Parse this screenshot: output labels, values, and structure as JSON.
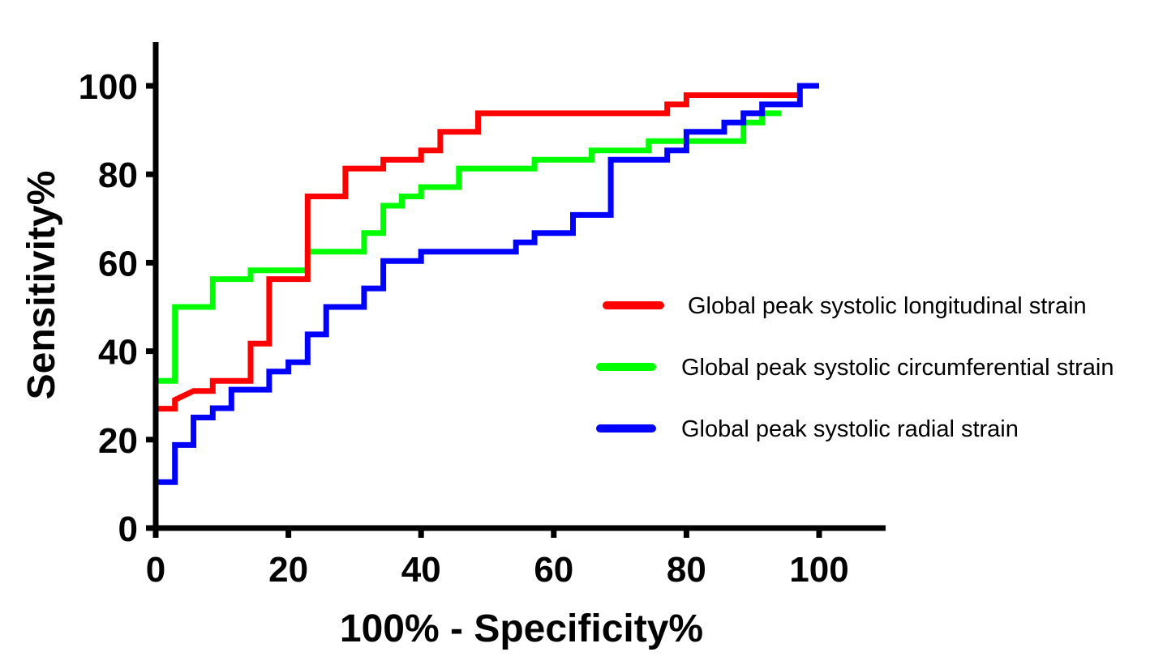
{
  "chart_data": {
    "type": "line",
    "title": "",
    "xlabel": "100% - Specificity%",
    "ylabel": "Sensitivity%",
    "xlim": [
      0,
      110
    ],
    "ylim": [
      0,
      110
    ],
    "xticks": [
      "0",
      "20",
      "40",
      "60",
      "80",
      "100"
    ],
    "yticks": [
      "0",
      "20",
      "40",
      "60",
      "80",
      "100"
    ],
    "legend_position": "right",
    "series": [
      {
        "name": " Global peak systolic longitudinal strain",
        "color": "#ff0000",
        "points": [
          [
            0,
            27
          ],
          [
            2.9,
            27
          ],
          [
            2.9,
            29
          ],
          [
            5.7,
            31
          ],
          [
            8.6,
            31
          ],
          [
            8.6,
            33.3
          ],
          [
            14.3,
            33.3
          ],
          [
            14.3,
            41.7
          ],
          [
            17.1,
            41.7
          ],
          [
            17.1,
            56.3
          ],
          [
            22.9,
            56.3
          ],
          [
            22.9,
            75
          ],
          [
            28.6,
            75
          ],
          [
            28.6,
            81.3
          ],
          [
            34.3,
            81.3
          ],
          [
            34.3,
            83.3
          ],
          [
            40,
            83.3
          ],
          [
            40,
            85.4
          ],
          [
            42.9,
            85.4
          ],
          [
            42.9,
            89.6
          ],
          [
            48.6,
            89.6
          ],
          [
            48.6,
            93.8
          ],
          [
            77.1,
            93.8
          ],
          [
            77.1,
            95.8
          ],
          [
            80,
            95.8
          ],
          [
            80,
            97.9
          ],
          [
            97.1,
            97.9
          ]
        ]
      },
      {
        "name": "Global peak systolic circumferential strain",
        "color": "#00ff00",
        "points": [
          [
            0,
            12
          ],
          [
            0,
            33.3
          ],
          [
            2.9,
            33.3
          ],
          [
            2.9,
            50
          ],
          [
            8.6,
            50
          ],
          [
            8.6,
            56.3
          ],
          [
            14.3,
            56.3
          ],
          [
            14.3,
            58.3
          ],
          [
            22.9,
            58.3
          ],
          [
            22.9,
            62.5
          ],
          [
            31.4,
            62.5
          ],
          [
            31.4,
            66.7
          ],
          [
            34.3,
            66.7
          ],
          [
            34.3,
            72.9
          ],
          [
            37.1,
            72.9
          ],
          [
            37.1,
            75
          ],
          [
            40,
            75
          ],
          [
            40,
            77.1
          ],
          [
            45.7,
            77.1
          ],
          [
            45.7,
            81.3
          ],
          [
            57.1,
            81.3
          ],
          [
            57.1,
            83.3
          ],
          [
            65.7,
            83.3
          ],
          [
            65.7,
            85.4
          ],
          [
            74.3,
            85.4
          ],
          [
            74.3,
            87.5
          ],
          [
            88.6,
            87.5
          ],
          [
            88.6,
            91.7
          ],
          [
            91.4,
            91.7
          ],
          [
            91.4,
            93.8
          ],
          [
            94.3,
            93.8
          ]
        ]
      },
      {
        "name": "Global peak systolic radial strain",
        "color": "#0000ff",
        "points": [
          [
            0,
            0
          ],
          [
            0,
            10.4
          ],
          [
            2.9,
            10.4
          ],
          [
            2.9,
            18.8
          ],
          [
            5.7,
            18.8
          ],
          [
            5.7,
            25
          ],
          [
            8.6,
            25
          ],
          [
            8.6,
            27.1
          ],
          [
            11.4,
            27.1
          ],
          [
            11.4,
            31.3
          ],
          [
            17.1,
            31.3
          ],
          [
            17.1,
            35.4
          ],
          [
            20,
            35.4
          ],
          [
            20,
            37.5
          ],
          [
            22.9,
            37.5
          ],
          [
            22.9,
            43.8
          ],
          [
            25.7,
            43.8
          ],
          [
            25.7,
            50
          ],
          [
            31.4,
            50
          ],
          [
            31.4,
            54.2
          ],
          [
            34.3,
            54.2
          ],
          [
            34.3,
            60.4
          ],
          [
            40,
            60.4
          ],
          [
            40,
            62.5
          ],
          [
            54.3,
            62.5
          ],
          [
            54.3,
            64.6
          ],
          [
            57.1,
            64.6
          ],
          [
            57.1,
            66.7
          ],
          [
            62.9,
            66.7
          ],
          [
            62.9,
            70.8
          ],
          [
            68.6,
            70.8
          ],
          [
            68.6,
            83.3
          ],
          [
            77.1,
            83.3
          ],
          [
            77.1,
            85.4
          ],
          [
            80,
            85.4
          ],
          [
            80,
            89.6
          ],
          [
            85.7,
            89.6
          ],
          [
            85.7,
            91.7
          ],
          [
            88.6,
            91.7
          ],
          [
            88.6,
            93.8
          ],
          [
            91.4,
            93.8
          ],
          [
            91.4,
            95.8
          ],
          [
            97.1,
            95.8
          ],
          [
            97.1,
            100
          ],
          [
            100,
            100
          ]
        ]
      }
    ]
  }
}
